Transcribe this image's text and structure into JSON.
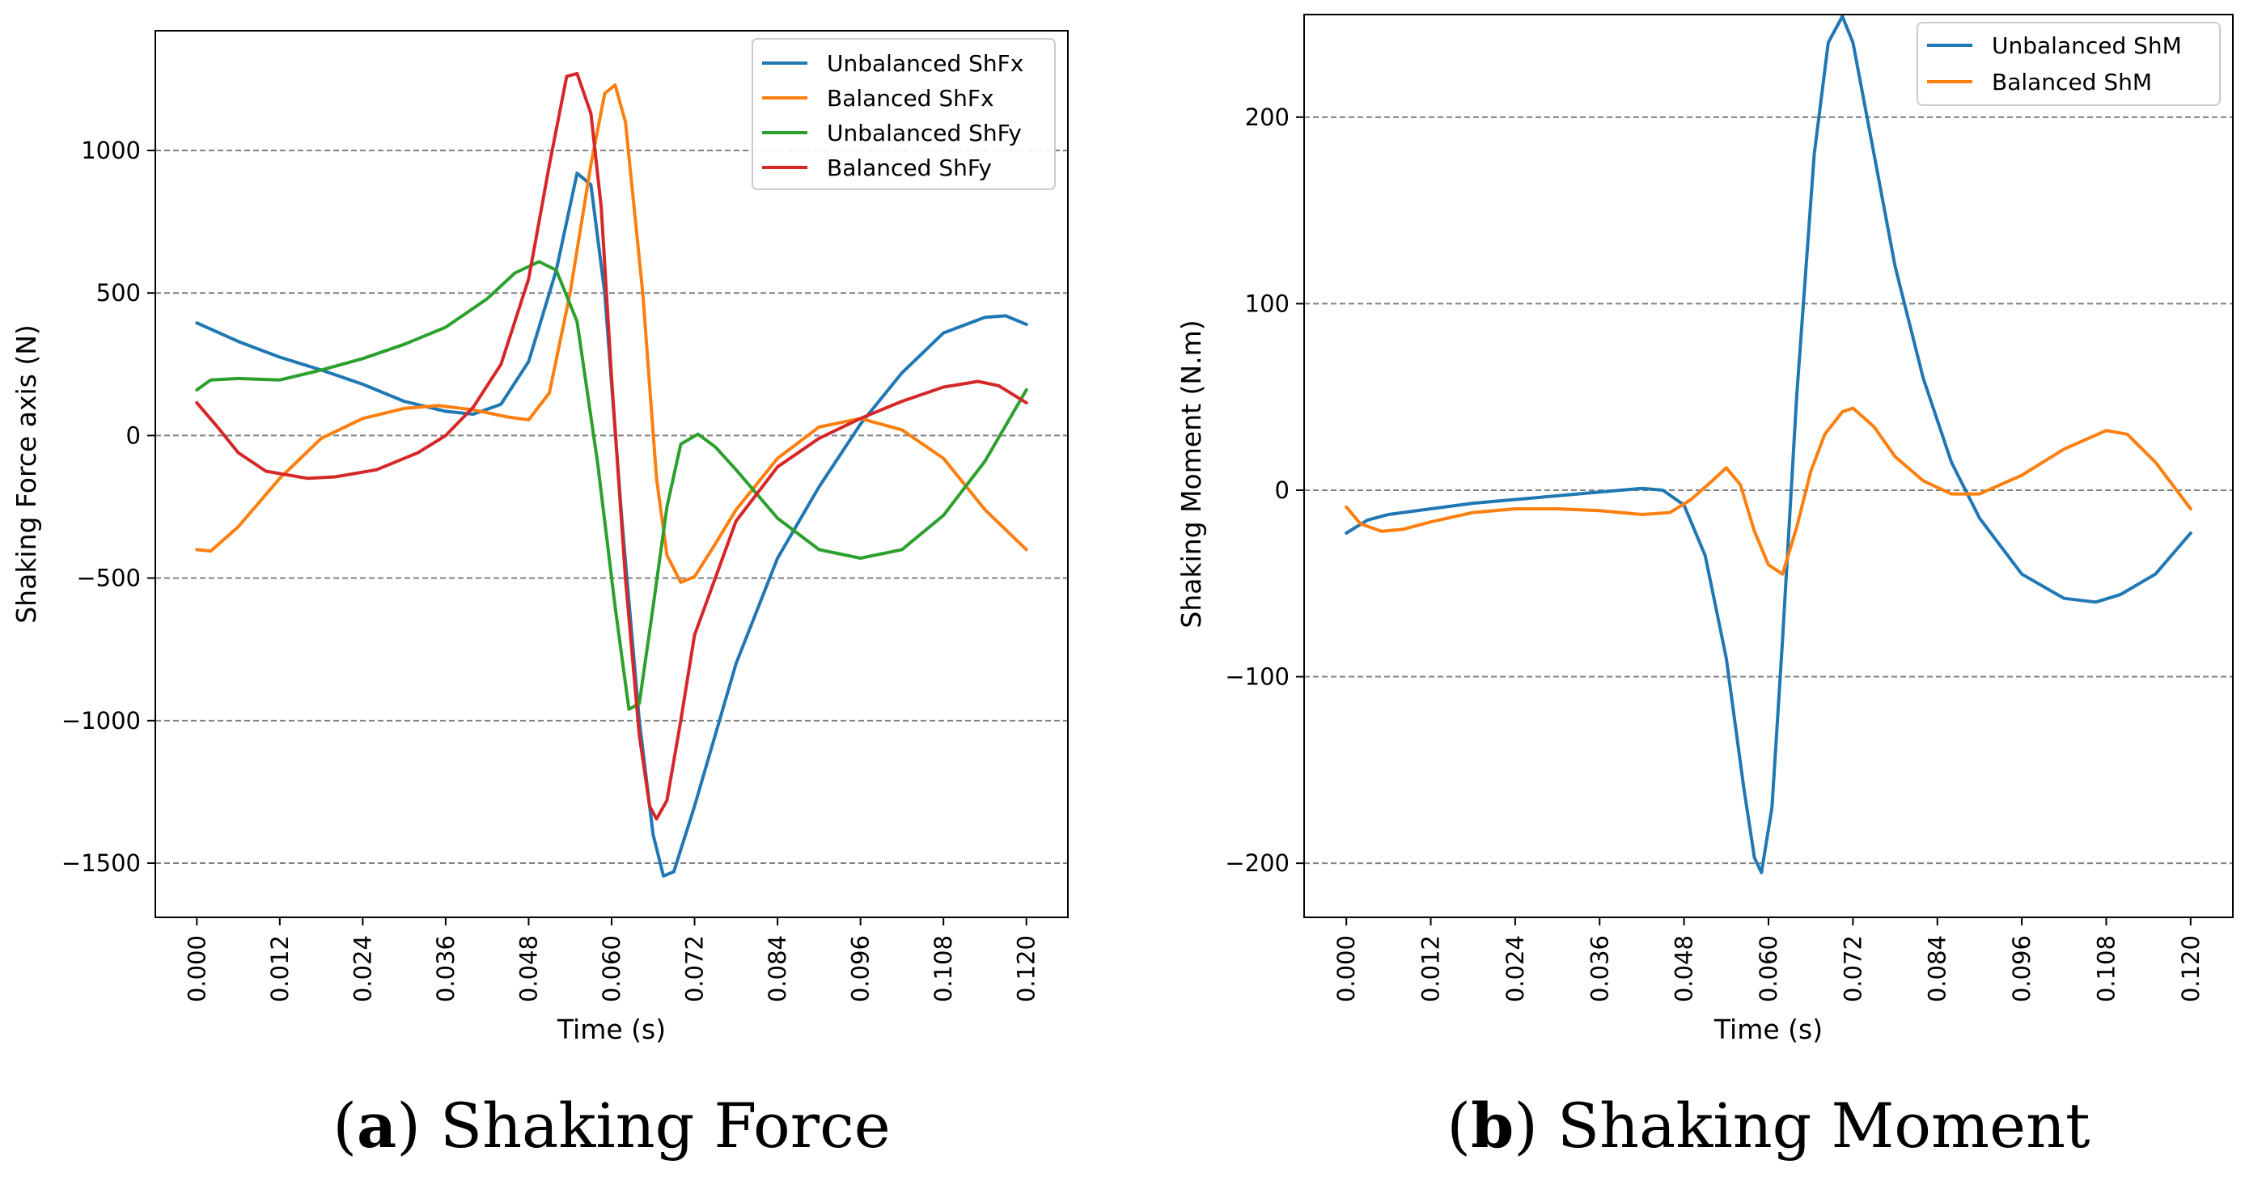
{
  "chart_data": [
    {
      "type": "line",
      "title": "",
      "caption_letter": "a",
      "caption_text": "Shaking Force",
      "xlabel": "Time (s)",
      "ylabel": "Shaking Force axis (N)",
      "xlim": [
        -0.006,
        0.126
      ],
      "ylim": [
        -1690,
        1420
      ],
      "xticks": [
        0.0,
        0.012,
        0.024,
        0.036,
        0.048,
        0.06,
        0.072,
        0.084,
        0.096,
        0.108,
        0.12
      ],
      "xtick_labels": [
        "0.000",
        "0.012",
        "0.024",
        "0.036",
        "0.048",
        "0.060",
        "0.072",
        "0.084",
        "0.096",
        "0.108",
        "0.120"
      ],
      "yticks": [
        -1500,
        -1000,
        -500,
        0,
        500,
        1000
      ],
      "ytick_labels": [
        "−1500",
        "−1000",
        "−500",
        "0",
        "500",
        "1000"
      ],
      "grid": "horizontal dashed",
      "legend_position": "top-right",
      "series": [
        {
          "name": "Unbalanced ShFx",
          "color": "#1f77b4",
          "points": [
            [
              0,
              395
            ],
            [
              0.006,
              330
            ],
            [
              0.012,
              275
            ],
            [
              0.018,
              230
            ],
            [
              0.024,
              180
            ],
            [
              0.03,
              120
            ],
            [
              0.036,
              85
            ],
            [
              0.04,
              75
            ],
            [
              0.044,
              110
            ],
            [
              0.048,
              260
            ],
            [
              0.052,
              580
            ],
            [
              0.055,
              920
            ],
            [
              0.057,
              880
            ],
            [
              0.059,
              500
            ],
            [
              0.0615,
              -300
            ],
            [
              0.064,
              -1000
            ],
            [
              0.066,
              -1400
            ],
            [
              0.0675,
              -1545
            ],
            [
              0.069,
              -1530
            ],
            [
              0.072,
              -1300
            ],
            [
              0.078,
              -800
            ],
            [
              0.084,
              -430
            ],
            [
              0.09,
              -180
            ],
            [
              0.096,
              40
            ],
            [
              0.102,
              220
            ],
            [
              0.108,
              360
            ],
            [
              0.114,
              415
            ],
            [
              0.117,
              420
            ],
            [
              0.12,
              390
            ]
          ]
        },
        {
          "name": "Balanced ShFx",
          "color": "#ff7f0e",
          "points": [
            [
              0,
              -400
            ],
            [
              0.002,
              -405
            ],
            [
              0.006,
              -320
            ],
            [
              0.012,
              -150
            ],
            [
              0.018,
              -10
            ],
            [
              0.024,
              60
            ],
            [
              0.03,
              95
            ],
            [
              0.035,
              105
            ],
            [
              0.04,
              90
            ],
            [
              0.045,
              65
            ],
            [
              0.048,
              55
            ],
            [
              0.051,
              150
            ],
            [
              0.054,
              500
            ],
            [
              0.057,
              950
            ],
            [
              0.059,
              1200
            ],
            [
              0.0605,
              1230
            ],
            [
              0.062,
              1100
            ],
            [
              0.0645,
              500
            ],
            [
              0.0665,
              -150
            ],
            [
              0.068,
              -420
            ],
            [
              0.07,
              -515
            ],
            [
              0.072,
              -495
            ],
            [
              0.075,
              -380
            ],
            [
              0.078,
              -260
            ],
            [
              0.084,
              -80
            ],
            [
              0.09,
              30
            ],
            [
              0.096,
              60
            ],
            [
              0.102,
              20
            ],
            [
              0.108,
              -80
            ],
            [
              0.114,
              -260
            ],
            [
              0.12,
              -400
            ]
          ]
        },
        {
          "name": "Unbalanced ShFy",
          "color": "#2ca02c",
          "points": [
            [
              0,
              160
            ],
            [
              0.002,
              195
            ],
            [
              0.006,
              200
            ],
            [
              0.012,
              195
            ],
            [
              0.018,
              230
            ],
            [
              0.024,
              270
            ],
            [
              0.03,
              320
            ],
            [
              0.036,
              380
            ],
            [
              0.042,
              480
            ],
            [
              0.046,
              570
            ],
            [
              0.0495,
              610
            ],
            [
              0.052,
              580
            ],
            [
              0.055,
              400
            ],
            [
              0.058,
              -100
            ],
            [
              0.0605,
              -600
            ],
            [
              0.0625,
              -960
            ],
            [
              0.064,
              -940
            ],
            [
              0.066,
              -600
            ],
            [
              0.068,
              -250
            ],
            [
              0.07,
              -30
            ],
            [
              0.0725,
              5
            ],
            [
              0.075,
              -40
            ],
            [
              0.078,
              -120
            ],
            [
              0.084,
              -290
            ],
            [
              0.09,
              -400
            ],
            [
              0.096,
              -430
            ],
            [
              0.102,
              -400
            ],
            [
              0.108,
              -280
            ],
            [
              0.114,
              -90
            ],
            [
              0.12,
              160
            ]
          ]
        },
        {
          "name": "Balanced ShFy",
          "color": "#d62728",
          "points": [
            [
              0,
              115
            ],
            [
              0.003,
              30
            ],
            [
              0.006,
              -60
            ],
            [
              0.01,
              -125
            ],
            [
              0.016,
              -150
            ],
            [
              0.02,
              -145
            ],
            [
              0.026,
              -120
            ],
            [
              0.032,
              -60
            ],
            [
              0.036,
              0
            ],
            [
              0.04,
              100
            ],
            [
              0.044,
              250
            ],
            [
              0.048,
              550
            ],
            [
              0.051,
              950
            ],
            [
              0.0535,
              1260
            ],
            [
              0.055,
              1270
            ],
            [
              0.057,
              1130
            ],
            [
              0.0585,
              800
            ],
            [
              0.06,
              200
            ],
            [
              0.062,
              -500
            ],
            [
              0.064,
              -1050
            ],
            [
              0.0655,
              -1300
            ],
            [
              0.0665,
              -1345
            ],
            [
              0.068,
              -1280
            ],
            [
              0.07,
              -1000
            ],
            [
              0.072,
              -700
            ],
            [
              0.078,
              -300
            ],
            [
              0.084,
              -110
            ],
            [
              0.09,
              -10
            ],
            [
              0.096,
              60
            ],
            [
              0.102,
              120
            ],
            [
              0.108,
              170
            ],
            [
              0.113,
              190
            ],
            [
              0.116,
              175
            ],
            [
              0.12,
              115
            ]
          ]
        }
      ]
    },
    {
      "type": "line",
      "title": "",
      "caption_letter": "b",
      "caption_text": "Shaking Moment",
      "xlabel": "Time (s)",
      "ylabel": "Shaking Moment (N.m)",
      "xlim": [
        -0.006,
        0.126
      ],
      "ylim": [
        -229,
        255
      ],
      "xticks": [
        0.0,
        0.012,
        0.024,
        0.036,
        0.048,
        0.06,
        0.072,
        0.084,
        0.096,
        0.108,
        0.12
      ],
      "xtick_labels": [
        "0.000",
        "0.012",
        "0.024",
        "0.036",
        "0.048",
        "0.060",
        "0.072",
        "0.084",
        "0.096",
        "0.108",
        "0.120"
      ],
      "yticks": [
        -200,
        -100,
        0,
        100,
        200
      ],
      "ytick_labels": [
        "−200",
        "−100",
        "0",
        "100",
        "200"
      ],
      "grid": "horizontal dashed",
      "legend_position": "top-right",
      "series": [
        {
          "name": "Unbalanced ShM",
          "color": "#1f77b4",
          "points": [
            [
              0,
              -23
            ],
            [
              0.003,
              -16
            ],
            [
              0.006,
              -13
            ],
            [
              0.012,
              -10
            ],
            [
              0.018,
              -7
            ],
            [
              0.024,
              -5
            ],
            [
              0.03,
              -3
            ],
            [
              0.036,
              -1
            ],
            [
              0.042,
              1
            ],
            [
              0.045,
              0
            ],
            [
              0.048,
              -8
            ],
            [
              0.051,
              -35
            ],
            [
              0.054,
              -90
            ],
            [
              0.0565,
              -160
            ],
            [
              0.058,
              -197
            ],
            [
              0.059,
              -205
            ],
            [
              0.0605,
              -170
            ],
            [
              0.062,
              -80
            ],
            [
              0.064,
              50
            ],
            [
              0.0665,
              180
            ],
            [
              0.0685,
              240
            ],
            [
              0.0705,
              254
            ],
            [
              0.072,
              240
            ],
            [
              0.075,
              180
            ],
            [
              0.078,
              120
            ],
            [
              0.082,
              60
            ],
            [
              0.086,
              15
            ],
            [
              0.09,
              -15
            ],
            [
              0.096,
              -45
            ],
            [
              0.102,
              -58
            ],
            [
              0.1065,
              -60
            ],
            [
              0.11,
              -56
            ],
            [
              0.115,
              -45
            ],
            [
              0.12,
              -23
            ]
          ]
        },
        {
          "name": "Balanced ShM",
          "color": "#ff7f0e",
          "points": [
            [
              0,
              -9
            ],
            [
              0.002,
              -18
            ],
            [
              0.005,
              -22
            ],
            [
              0.008,
              -21
            ],
            [
              0.012,
              -17
            ],
            [
              0.018,
              -12
            ],
            [
              0.024,
              -10
            ],
            [
              0.03,
              -10
            ],
            [
              0.036,
              -11
            ],
            [
              0.042,
              -13
            ],
            [
              0.046,
              -12
            ],
            [
              0.049,
              -5
            ],
            [
              0.052,
              5
            ],
            [
              0.054,
              12
            ],
            [
              0.056,
              3
            ],
            [
              0.058,
              -22
            ],
            [
              0.06,
              -40
            ],
            [
              0.062,
              -45
            ],
            [
              0.064,
              -20
            ],
            [
              0.066,
              10
            ],
            [
              0.068,
              30
            ],
            [
              0.0705,
              42
            ],
            [
              0.072,
              44
            ],
            [
              0.075,
              34
            ],
            [
              0.078,
              18
            ],
            [
              0.082,
              5
            ],
            [
              0.086,
              -2
            ],
            [
              0.09,
              -2
            ],
            [
              0.096,
              8
            ],
            [
              0.102,
              22
            ],
            [
              0.108,
              32
            ],
            [
              0.111,
              30
            ],
            [
              0.115,
              15
            ],
            [
              0.12,
              -10
            ]
          ]
        }
      ]
    }
  ]
}
